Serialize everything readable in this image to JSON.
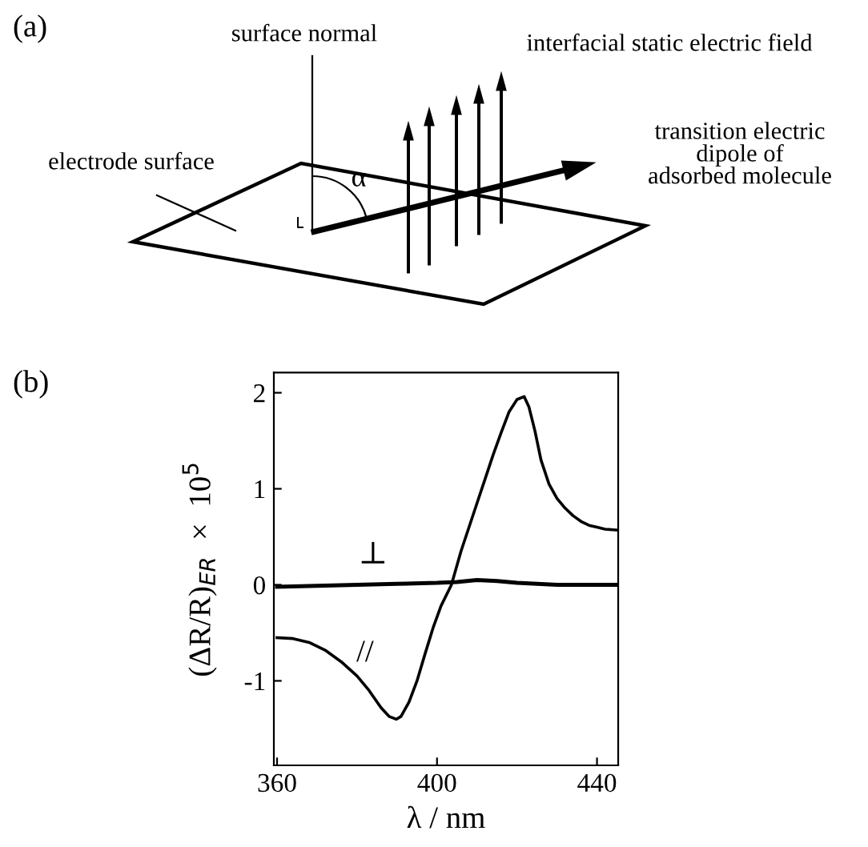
{
  "chart_data": {
    "type": "line",
    "xlabel": "λ / nm",
    "ylabel": "(ΔR/R)$_{ER}$  ×  10$^{5}$",
    "xlim": [
      359.2,
      445.3
    ],
    "ylim": [
      -1.88,
      2.21
    ],
    "xticks": [
      360,
      400,
      440
    ],
    "yticks": [
      -1,
      0,
      1,
      2
    ],
    "grid": false,
    "legend": false,
    "marker": "none",
    "line_style": "solid",
    "series": [
      {
        "name": "//",
        "color": "#000000",
        "x": [
          360,
          364,
          368,
          372,
          376,
          380,
          383,
          386,
          388,
          389.8,
          391,
          393,
          395,
          397,
          399,
          401,
          403.6,
          406,
          408,
          410,
          412,
          414,
          416,
          418,
          420,
          421.8,
          423,
          424.5,
          426,
          428,
          430,
          432,
          434,
          436,
          438,
          440,
          442,
          445
        ],
        "values": [
          -0.55,
          -0.56,
          -0.6,
          -0.68,
          -0.8,
          -0.95,
          -1.1,
          -1.28,
          -1.37,
          -1.4,
          -1.37,
          -1.22,
          -1.0,
          -0.72,
          -0.45,
          -0.22,
          0.0,
          0.35,
          0.6,
          0.85,
          1.1,
          1.35,
          1.58,
          1.8,
          1.93,
          1.96,
          1.85,
          1.6,
          1.3,
          1.05,
          0.9,
          0.8,
          0.72,
          0.66,
          0.62,
          0.6,
          0.58,
          0.57
        ]
      },
      {
        "name": "⊥",
        "color": "#000000",
        "x": [
          360,
          370,
          380,
          390,
          400,
          405,
          410,
          415,
          420,
          430,
          445
        ],
        "values": [
          -0.02,
          -0.01,
          0.0,
          0.01,
          0.02,
          0.03,
          0.05,
          0.04,
          0.02,
          0.0,
          0.0
        ]
      }
    ],
    "annotations": [
      "(a)",
      "surface normal",
      "interfacial static electric field",
      "transition electric\ndipole of\nadsorbed molecule",
      "electrode surface",
      "α",
      "(b)"
    ]
  }
}
